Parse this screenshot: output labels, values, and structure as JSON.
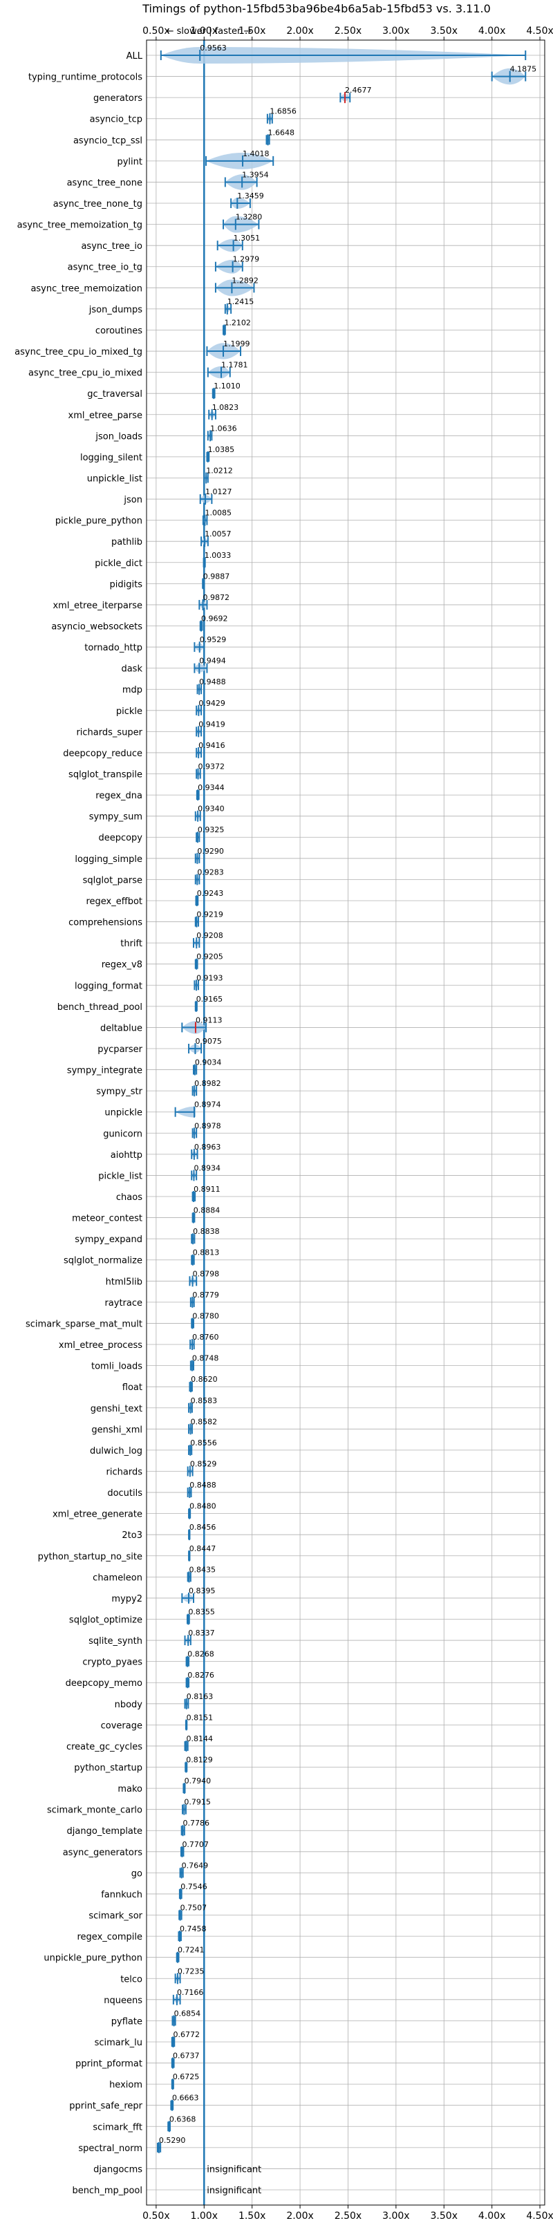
{
  "chart_data": {
    "type": "violin",
    "title": "Timings of python-15fbd53ba96be4b6a5ab-15fbd53 vs. 3.11.0",
    "direction_label": "← slower | faster →",
    "xlim": [
      0.4,
      4.55
    ],
    "xticks": [
      "0.50x",
      "1.00x",
      "1.50x",
      "2.00x",
      "2.50x",
      "3.00x",
      "3.50x",
      "4.00x",
      "4.50x"
    ],
    "xtick_values": [
      0.5,
      1.0,
      1.5,
      2.0,
      2.5,
      3.0,
      3.5,
      4.0,
      4.5
    ],
    "reference_line": 1.0,
    "grid": true,
    "colors": {
      "violin": "#aecde8",
      "median": "#1f77b4",
      "slower": "#d62728",
      "reference": "#1f77b4"
    },
    "benchmarks": [
      {
        "name": "ALL",
        "value": 0.9563,
        "label": "0.9563",
        "lo": 0.55,
        "hi": 4.35
      },
      {
        "name": "typing_runtime_protocols",
        "value": 4.1875,
        "label": "4.1875",
        "lo": 4.0,
        "hi": 4.35
      },
      {
        "name": "generators",
        "value": 2.4677,
        "label": "2.4677",
        "lo": 2.42,
        "hi": 2.52,
        "slower": true
      },
      {
        "name": "asyncio_tcp",
        "value": 1.6856,
        "label": "1.6856",
        "lo": 1.66,
        "hi": 1.71
      },
      {
        "name": "asyncio_tcp_ssl",
        "value": 1.6648,
        "label": "1.6648",
        "lo": 1.65,
        "hi": 1.68
      },
      {
        "name": "pylint",
        "value": 1.4018,
        "label": "1.4018",
        "lo": 1.02,
        "hi": 1.72
      },
      {
        "name": "async_tree_none",
        "value": 1.3954,
        "label": "1.3954",
        "lo": 1.22,
        "hi": 1.55
      },
      {
        "name": "async_tree_none_tg",
        "value": 1.3459,
        "label": "1.3459",
        "lo": 1.28,
        "hi": 1.48
      },
      {
        "name": "async_tree_memoization_tg",
        "value": 1.328,
        "label": "1.3280",
        "lo": 1.2,
        "hi": 1.57
      },
      {
        "name": "async_tree_io",
        "value": 1.3051,
        "label": "1.3051",
        "lo": 1.14,
        "hi": 1.4
      },
      {
        "name": "async_tree_io_tg",
        "value": 1.2979,
        "label": "1.2979",
        "lo": 1.12,
        "hi": 1.4
      },
      {
        "name": "async_tree_memoization",
        "value": 1.2892,
        "label": "1.2892",
        "lo": 1.12,
        "hi": 1.52
      },
      {
        "name": "json_dumps",
        "value": 1.2415,
        "label": "1.2415",
        "lo": 1.22,
        "hi": 1.28
      },
      {
        "name": "coroutines",
        "value": 1.2102,
        "label": "1.2102",
        "lo": 1.2,
        "hi": 1.22
      },
      {
        "name": "async_tree_cpu_io_mixed_tg",
        "value": 1.1999,
        "label": "1.1999",
        "lo": 1.03,
        "hi": 1.38
      },
      {
        "name": "async_tree_cpu_io_mixed",
        "value": 1.1781,
        "label": "1.1781",
        "lo": 1.04,
        "hi": 1.27
      },
      {
        "name": "gc_traversal",
        "value": 1.101,
        "label": "1.1010",
        "lo": 1.09,
        "hi": 1.11
      },
      {
        "name": "xml_etree_parse",
        "value": 1.0823,
        "label": "1.0823",
        "lo": 1.05,
        "hi": 1.12
      },
      {
        "name": "json_loads",
        "value": 1.0636,
        "label": "1.0636",
        "lo": 1.04,
        "hi": 1.08
      },
      {
        "name": "logging_silent",
        "value": 1.0385,
        "label": "1.0385",
        "lo": 1.03,
        "hi": 1.05
      },
      {
        "name": "unpickle_list",
        "value": 1.0212,
        "label": "1.0212",
        "lo": 1.0,
        "hi": 1.04
      },
      {
        "name": "json",
        "value": 1.0127,
        "label": "1.0127",
        "lo": 0.96,
        "hi": 1.08
      },
      {
        "name": "pickle_pure_python",
        "value": 1.0085,
        "label": "1.0085",
        "lo": 0.99,
        "hi": 1.03
      },
      {
        "name": "pathlib",
        "value": 1.0057,
        "label": "1.0057",
        "lo": 0.97,
        "hi": 1.04
      },
      {
        "name": "pickle_dict",
        "value": 1.0033,
        "label": "1.0033",
        "lo": 0.995,
        "hi": 1.01
      },
      {
        "name": "pidigits",
        "value": 0.9887,
        "label": "0.9887",
        "lo": 0.985,
        "hi": 0.99
      },
      {
        "name": "xml_etree_iterparse",
        "value": 0.9872,
        "label": "0.9872",
        "lo": 0.95,
        "hi": 1.03
      },
      {
        "name": "asyncio_websockets",
        "value": 0.9692,
        "label": "0.9692",
        "lo": 0.96,
        "hi": 0.98
      },
      {
        "name": "tornado_http",
        "value": 0.9529,
        "label": "0.9529",
        "lo": 0.9,
        "hi": 1.0
      },
      {
        "name": "dask",
        "value": 0.9494,
        "label": "0.9494",
        "lo": 0.9,
        "hi": 1.03
      },
      {
        "name": "mdp",
        "value": 0.9488,
        "label": "0.9488",
        "lo": 0.93,
        "hi": 0.97
      },
      {
        "name": "pickle",
        "value": 0.9429,
        "label": "0.9429",
        "lo": 0.92,
        "hi": 0.97
      },
      {
        "name": "richards_super",
        "value": 0.9419,
        "label": "0.9419",
        "lo": 0.92,
        "hi": 0.97
      },
      {
        "name": "deepcopy_reduce",
        "value": 0.9416,
        "label": "0.9416",
        "lo": 0.92,
        "hi": 0.97
      },
      {
        "name": "sqlglot_transpile",
        "value": 0.9372,
        "label": "0.9372",
        "lo": 0.92,
        "hi": 0.96
      },
      {
        "name": "regex_dna",
        "value": 0.9344,
        "label": "0.9344",
        "lo": 0.925,
        "hi": 0.945
      },
      {
        "name": "sympy_sum",
        "value": 0.934,
        "label": "0.9340",
        "lo": 0.91,
        "hi": 0.96
      },
      {
        "name": "deepcopy",
        "value": 0.9325,
        "label": "0.9325",
        "lo": 0.92,
        "hi": 0.95
      },
      {
        "name": "logging_simple",
        "value": 0.929,
        "label": "0.9290",
        "lo": 0.91,
        "hi": 0.95
      },
      {
        "name": "sqlglot_parse",
        "value": 0.9283,
        "label": "0.9283",
        "lo": 0.91,
        "hi": 0.95
      },
      {
        "name": "regex_effbot",
        "value": 0.9243,
        "label": "0.9243",
        "lo": 0.915,
        "hi": 0.935
      },
      {
        "name": "comprehensions",
        "value": 0.9219,
        "label": "0.9219",
        "lo": 0.91,
        "hi": 0.94
      },
      {
        "name": "thrift",
        "value": 0.9208,
        "label": "0.9208",
        "lo": 0.89,
        "hi": 0.95
      },
      {
        "name": "regex_v8",
        "value": 0.9205,
        "label": "0.9205",
        "lo": 0.91,
        "hi": 0.93
      },
      {
        "name": "logging_format",
        "value": 0.9193,
        "label": "0.9193",
        "lo": 0.9,
        "hi": 0.94
      },
      {
        "name": "bench_thread_pool",
        "value": 0.9165,
        "label": "0.9165",
        "lo": 0.91,
        "hi": 0.925
      },
      {
        "name": "deltablue",
        "value": 0.9113,
        "label": "0.9113",
        "lo": 0.77,
        "hi": 1.02,
        "slower": true
      },
      {
        "name": "pycparser",
        "value": 0.9075,
        "label": "0.9075",
        "lo": 0.84,
        "hi": 0.97
      },
      {
        "name": "sympy_integrate",
        "value": 0.9034,
        "label": "0.9034",
        "lo": 0.89,
        "hi": 0.92
      },
      {
        "name": "sympy_str",
        "value": 0.8982,
        "label": "0.8982",
        "lo": 0.88,
        "hi": 0.92
      },
      {
        "name": "unpickle",
        "value": 0.8974,
        "label": "0.8974",
        "lo": 0.7,
        "hi": 0.9
      },
      {
        "name": "gunicorn",
        "value": 0.8978,
        "label": "0.8978",
        "lo": 0.88,
        "hi": 0.92
      },
      {
        "name": "aiohttp",
        "value": 0.8963,
        "label": "0.8963",
        "lo": 0.87,
        "hi": 0.93
      },
      {
        "name": "pickle_list",
        "value": 0.8934,
        "label": "0.8934",
        "lo": 0.87,
        "hi": 0.92
      },
      {
        "name": "chaos",
        "value": 0.8911,
        "label": "0.8911",
        "lo": 0.88,
        "hi": 0.905
      },
      {
        "name": "meteor_contest",
        "value": 0.8884,
        "label": "0.8884",
        "lo": 0.88,
        "hi": 0.9
      },
      {
        "name": "sympy_expand",
        "value": 0.8838,
        "label": "0.8838",
        "lo": 0.87,
        "hi": 0.9
      },
      {
        "name": "sqlglot_normalize",
        "value": 0.8813,
        "label": "0.8813",
        "lo": 0.87,
        "hi": 0.895
      },
      {
        "name": "html5lib",
        "value": 0.8798,
        "label": "0.8798",
        "lo": 0.85,
        "hi": 0.92
      },
      {
        "name": "raytrace",
        "value": 0.8779,
        "label": "0.8779",
        "lo": 0.86,
        "hi": 0.895
      },
      {
        "name": "scimark_sparse_mat_mult",
        "value": 0.878,
        "label": "0.8780",
        "lo": 0.87,
        "hi": 0.89
      },
      {
        "name": "xml_etree_process",
        "value": 0.876,
        "label": "0.8760",
        "lo": 0.855,
        "hi": 0.895
      },
      {
        "name": "tomli_loads",
        "value": 0.8748,
        "label": "0.8748",
        "lo": 0.86,
        "hi": 0.89
      },
      {
        "name": "float",
        "value": 0.862,
        "label": "0.8620",
        "lo": 0.85,
        "hi": 0.875
      },
      {
        "name": "genshi_text",
        "value": 0.8583,
        "label": "0.8583",
        "lo": 0.84,
        "hi": 0.875
      },
      {
        "name": "genshi_xml",
        "value": 0.8582,
        "label": "0.8582",
        "lo": 0.84,
        "hi": 0.875
      },
      {
        "name": "dulwich_log",
        "value": 0.8556,
        "label": "0.8556",
        "lo": 0.84,
        "hi": 0.87
      },
      {
        "name": "richards",
        "value": 0.8529,
        "label": "0.8529",
        "lo": 0.83,
        "hi": 0.88
      },
      {
        "name": "docutils",
        "value": 0.8488,
        "label": "0.8488",
        "lo": 0.83,
        "hi": 0.865
      },
      {
        "name": "xml_etree_generate",
        "value": 0.848,
        "label": "0.8480",
        "lo": 0.84,
        "hi": 0.855
      },
      {
        "name": "2to3",
        "value": 0.8456,
        "label": "0.8456",
        "lo": 0.84,
        "hi": 0.85
      },
      {
        "name": "python_startup_no_site",
        "value": 0.8447,
        "label": "0.8447",
        "lo": 0.84,
        "hi": 0.85
      },
      {
        "name": "chameleon",
        "value": 0.8435,
        "label": "0.8435",
        "lo": 0.83,
        "hi": 0.86
      },
      {
        "name": "mypy2",
        "value": 0.8395,
        "label": "0.8395",
        "lo": 0.77,
        "hi": 0.89
      },
      {
        "name": "sqlglot_optimize",
        "value": 0.8355,
        "label": "0.8355",
        "lo": 0.825,
        "hi": 0.845
      },
      {
        "name": "sqlite_synth",
        "value": 0.8337,
        "label": "0.8337",
        "lo": 0.8,
        "hi": 0.86
      },
      {
        "name": "crypto_pyaes",
        "value": 0.8268,
        "label": "0.8268",
        "lo": 0.815,
        "hi": 0.84
      },
      {
        "name": "deepcopy_memo",
        "value": 0.8276,
        "label": "0.8276",
        "lo": 0.815,
        "hi": 0.84
      },
      {
        "name": "nbody",
        "value": 0.8163,
        "label": "0.8163",
        "lo": 0.8,
        "hi": 0.835
      },
      {
        "name": "coverage",
        "value": 0.8151,
        "label": "0.8151",
        "lo": 0.81,
        "hi": 0.82
      },
      {
        "name": "create_gc_cycles",
        "value": 0.8144,
        "label": "0.8144",
        "lo": 0.8,
        "hi": 0.83
      },
      {
        "name": "python_startup",
        "value": 0.8129,
        "label": "0.8129",
        "lo": 0.805,
        "hi": 0.82
      },
      {
        "name": "mako",
        "value": 0.794,
        "label": "0.7940",
        "lo": 0.785,
        "hi": 0.8
      },
      {
        "name": "scimark_monte_carlo",
        "value": 0.7915,
        "label": "0.7915",
        "lo": 0.775,
        "hi": 0.81
      },
      {
        "name": "django_template",
        "value": 0.7786,
        "label": "0.7786",
        "lo": 0.765,
        "hi": 0.795
      },
      {
        "name": "async_generators",
        "value": 0.7707,
        "label": "0.7707",
        "lo": 0.76,
        "hi": 0.785
      },
      {
        "name": "go",
        "value": 0.7649,
        "label": "0.7649",
        "lo": 0.75,
        "hi": 0.78
      },
      {
        "name": "fannkuch",
        "value": 0.7546,
        "label": "0.7546",
        "lo": 0.745,
        "hi": 0.765
      },
      {
        "name": "scimark_sor",
        "value": 0.7507,
        "label": "0.7507",
        "lo": 0.74,
        "hi": 0.765
      },
      {
        "name": "regex_compile",
        "value": 0.7458,
        "label": "0.7458",
        "lo": 0.735,
        "hi": 0.76
      },
      {
        "name": "unpickle_pure_python",
        "value": 0.7241,
        "label": "0.7241",
        "lo": 0.715,
        "hi": 0.735
      },
      {
        "name": "telco",
        "value": 0.7235,
        "label": "0.7235",
        "lo": 0.7,
        "hi": 0.75
      },
      {
        "name": "nqueens",
        "value": 0.7166,
        "label": "0.7166",
        "lo": 0.68,
        "hi": 0.75
      },
      {
        "name": "pyflate",
        "value": 0.6854,
        "label": "0.6854",
        "lo": 0.67,
        "hi": 0.7
      },
      {
        "name": "scimark_lu",
        "value": 0.6772,
        "label": "0.6772",
        "lo": 0.665,
        "hi": 0.69
      },
      {
        "name": "pprint_pformat",
        "value": 0.6737,
        "label": "0.6737",
        "lo": 0.665,
        "hi": 0.685
      },
      {
        "name": "hexiom",
        "value": 0.6725,
        "label": "0.6725",
        "lo": 0.665,
        "hi": 0.68
      },
      {
        "name": "pprint_safe_repr",
        "value": 0.6663,
        "label": "0.6663",
        "lo": 0.655,
        "hi": 0.675
      },
      {
        "name": "scimark_fft",
        "value": 0.6368,
        "label": "0.6368",
        "lo": 0.625,
        "hi": 0.645
      },
      {
        "name": "spectral_norm",
        "value": 0.529,
        "label": "0.5290",
        "lo": 0.515,
        "hi": 0.545
      },
      {
        "name": "djangocms",
        "value": null,
        "label": "insignificant"
      },
      {
        "name": "bench_mp_pool",
        "value": null,
        "label": "insignificant"
      }
    ]
  }
}
